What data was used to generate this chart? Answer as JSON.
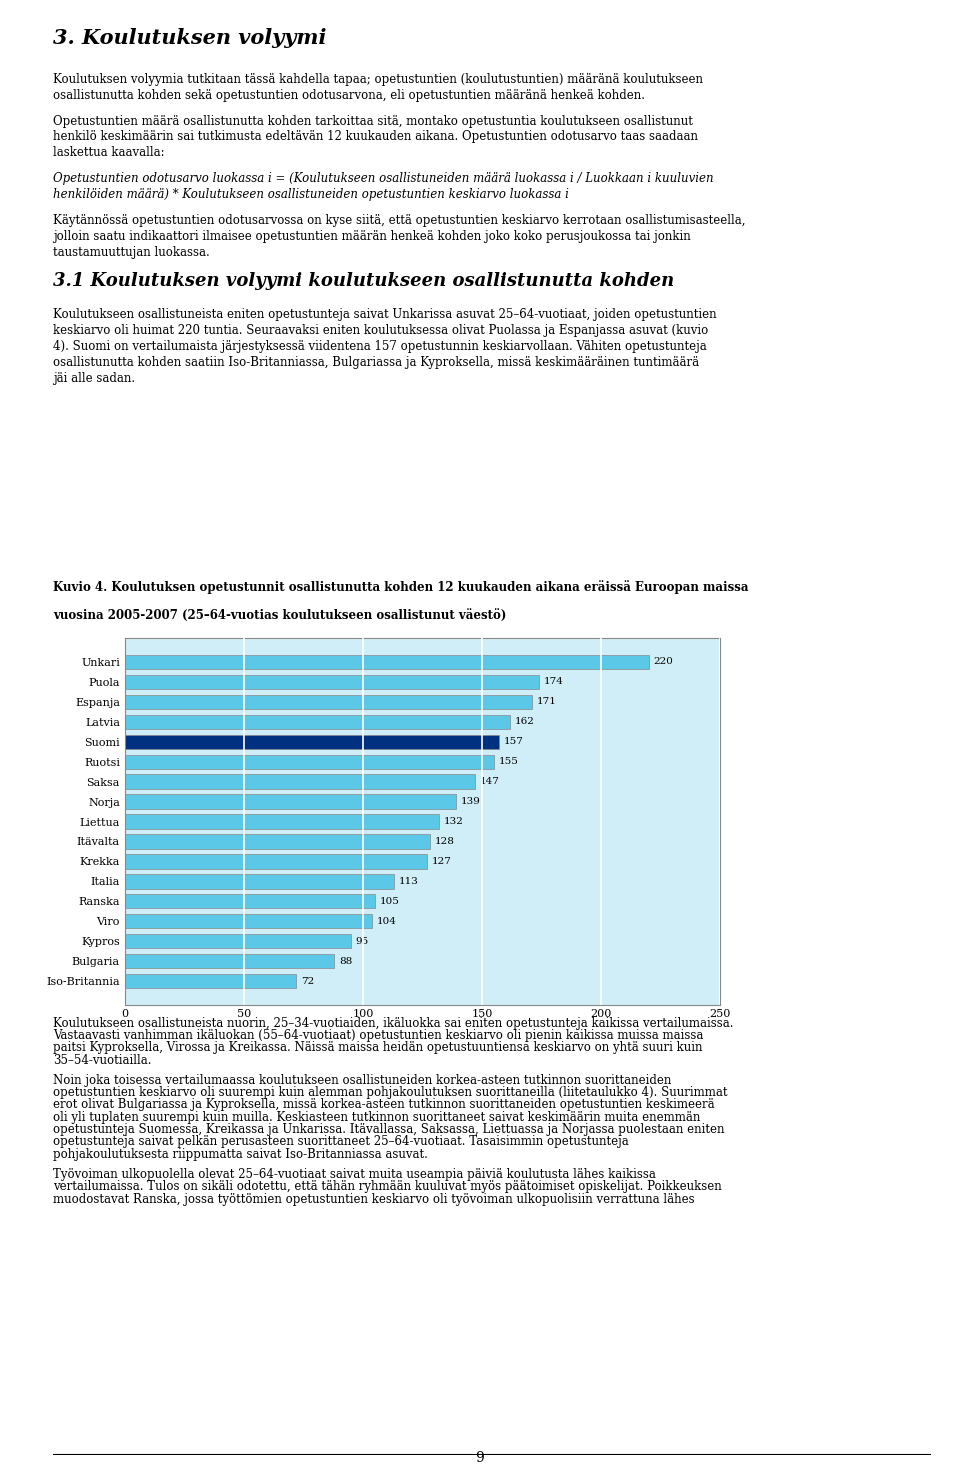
{
  "title_line1": "Kuvio 4. Koulutuksen opetustunnit osallistunutta kohden 12 kuukauden aikana eräissä Euroopan maissa",
  "title_line2": "vuosina 2005-2007 (25–64-vuotias koulutukseen osallistunut väestö)",
  "countries": [
    "Unkari",
    "Puola",
    "Espanja",
    "Latvia",
    "Suomi",
    "Ruotsi",
    "Saksa",
    "Norja",
    "Liettua",
    "Itävalta",
    "Krekka",
    "Italia",
    "Ranska",
    "Viro",
    "Kypros",
    "Bulgaria",
    "Iso-Britannia"
  ],
  "values": [
    220,
    174,
    171,
    162,
    157,
    155,
    147,
    139,
    132,
    128,
    127,
    113,
    105,
    104,
    95,
    88,
    72
  ],
  "bar_colors": [
    "#5bc8e8",
    "#5bc8e8",
    "#5bc8e8",
    "#5bc8e8",
    "#003080",
    "#5bc8e8",
    "#5bc8e8",
    "#5bc8e8",
    "#5bc8e8",
    "#5bc8e8",
    "#5bc8e8",
    "#5bc8e8",
    "#5bc8e8",
    "#5bc8e8",
    "#5bc8e8",
    "#5bc8e8",
    "#5bc8e8"
  ],
  "xlim": [
    0,
    250
  ],
  "xticks": [
    0,
    50,
    100,
    150,
    200,
    250
  ],
  "background_color": "#ffffff",
  "text_color": "#000000",
  "heading1": "3. Koulutuksen volyymi",
  "para1": "Koulutuksen volyymia tutkitaan tässä kahdella tapaa; opetustuntien (koulutustuntien) määränä koulutukseen osallistunutta kohden sekä opetustuntien odotusarvona, eli opetustuntien määränä henkeä kohden.",
  "para2": "Opetustuntien määrä osallistunutta kohden tarkoittaa sitä, montako opetustuntia koulutukseen osallistunut henkilö keskimäärin sai tutkimusta edeltävän 12 kuukauden aikana. Opetustuntien odotusarvo taas saadaan laskettua kaavalla:",
  "formula": "Opetustuntien odotusarvo luokassa i = (Koulutukseen osallistuneiden määrä luokassa i / Luokkaan i kuuluvien\nhenkilöiden määrä) * Koulutukseen osallistuneiden opetustuntien keskiarvo luokassa i",
  "para3": "Käytännössä opetustuntien odotusarvossa on kyse siitä, että opetustuntien keskiarvo kerrotaan osallistumisasteella, jolloin saatu indikaattori ilmaisee opetustuntien määrän henkeä kohden joko koko perusjoukossa tai jonkin taustamuuttujan luokassa.",
  "heading2": "3.1 Koulutuksen volyymi koulutukseen osallistunutta kohden",
  "para4": "Koulutukseen osallistuneista eniten opetustunteja saivat Unkarissa asuvat 25–64-vuotiaat, joiden opetustuntien keskiarvo oli huimat 220 tuntia. Seuraavaksi eniten koulutuksessa olivat Puolassa ja Espanjassa asuvat (kuvio 4). Suomi on vertailumaista järjestyksessä viidentena 157 opetustunnin keskiarvollaan. Vähiten opetustunteja osallistunutta kohden saatiin Iso-Britanniassa, Bulgariassa ja Kyproksella, missä keskimääräinen tuntimäärä jäi alle sadan.",
  "chart_title": "Kuvio 4. Koulutuksen opetustunnit osallistunutta kohden 12 kuukauden aikana eräissä Euroopan maissa\nvuosina 2005-2007 (25–64-vuotias koulutukseen osallistunut väestö)",
  "para5": "Koulutukseen osallistuneista nuorin, 25–34-vuotiaiden, ikäluokka sai eniten opetustunteja kaikissa vertailumaissa. Vastaavasti vanhimman ikäluokan (55–64-vuotiaat) opetustuntien keskiarvo oli pienin kaikissa muissa maissa paitsi Kyproksella, Virossa ja Kreikassa. Näissä maissa heidän opetustuntiensa keskiarvo on yhtä suuri kuin 35–54-vuotiailla.",
  "para6": "Noin joka toisessa vertailumaassa koulutukseen osallistuneiden korkea-asteen tutkinnon suorittaneiden opetustuntien keskiarvo oli suurempi kuin alemman pohjakoulutuksen suorittaneilla (liitetaulukko 4). Suurimmat erot olivat Bulgariassa ja Kyproksella, missä korkea-asteen tutkinnon suorittaneiden opetustuntien keskimeerä oli yli tuplaten suurempi kuin muilla. Keskiasteen tutkinnon suorittaneet saivat keskimäärin muita enemmän opetustunteja Suomessa, Kreikassa ja Unkarissa. Itävallassa, Saksassa, Liettuassa ja Norjassa puolestaan eniten opetustunteja saivat pelkän perusasteen suorittaneet 25–64-vuotiaat. Tasaisimmin opetustunteja pohjakoulutuksesta riippumatta saivat Iso-Britanniassa asuvat.",
  "para7": "Työvoiman ulkopuolella olevat 25–64-vuotiaat saivat muita useampia päiviä koulutusta lähes kaikissa vertailumaissa. Tulos on sikäli odotettu, että tähän ryhmään kuuluvat myös päätoimiset opiskelijat. Poikkeuksen muodostavat Ranska, jossa työttömien opetustuntien keskiarvo oli työvoiman ulkopuolisiin verrattuna lähes",
  "page_number": "9"
}
